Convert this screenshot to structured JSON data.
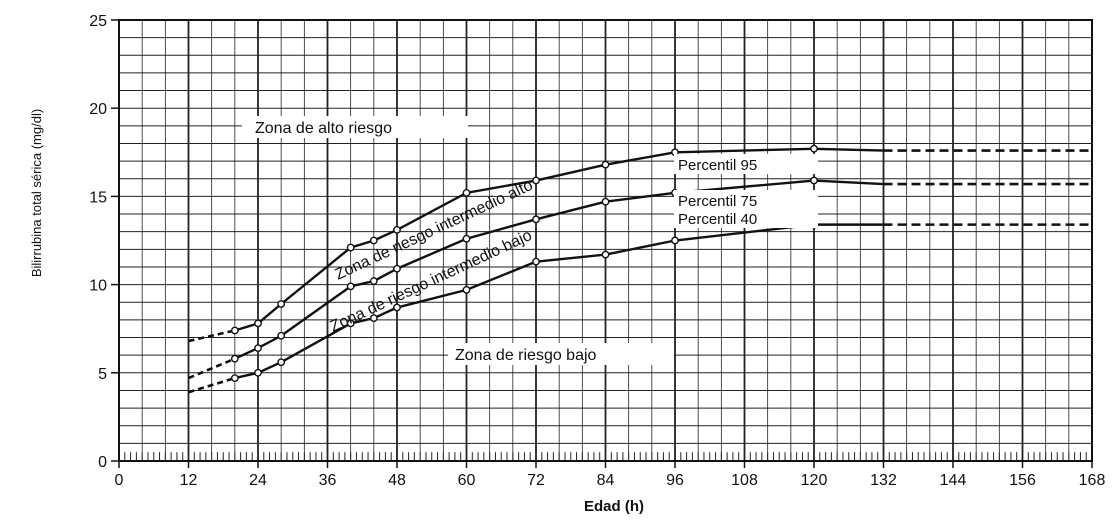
{
  "chart_data": {
    "type": "line",
    "xlabel": "Edad (h)",
    "ylabel": "Bilirrubina total sérica (mg/dl)",
    "xlim": [
      0,
      168
    ],
    "ylim": [
      0,
      25
    ],
    "x_ticks": [
      "0",
      "12",
      "24",
      "36",
      "48",
      "60",
      "72",
      "84",
      "96",
      "108",
      "120",
      "132",
      "144",
      "156",
      "168"
    ],
    "y_ticks": [
      "0",
      "5",
      "10",
      "15",
      "20",
      "25"
    ],
    "grid": true,
    "series": [
      {
        "name": "Percentil 95",
        "points": [
          [
            20,
            7.4
          ],
          [
            24,
            7.8
          ],
          [
            28,
            8.9
          ],
          [
            40,
            12.1
          ],
          [
            44,
            12.5
          ],
          [
            48,
            13.1
          ],
          [
            60,
            15.2
          ],
          [
            72,
            15.9
          ],
          [
            84,
            16.8
          ],
          [
            96,
            17.5
          ],
          [
            120,
            17.7
          ],
          [
            132,
            17.6
          ]
        ],
        "dashed_start": [
          [
            12,
            6.8
          ],
          [
            20,
            7.4
          ]
        ],
        "dashed_end": [
          [
            132,
            17.6
          ],
          [
            168,
            17.6
          ]
        ]
      },
      {
        "name": "Percentil 75",
        "points": [
          [
            20,
            5.8
          ],
          [
            24,
            6.4
          ],
          [
            28,
            7.1
          ],
          [
            40,
            9.9
          ],
          [
            44,
            10.2
          ],
          [
            48,
            10.9
          ],
          [
            60,
            12.6
          ],
          [
            72,
            13.7
          ],
          [
            84,
            14.7
          ],
          [
            96,
            15.2
          ],
          [
            120,
            15.9
          ],
          [
            132,
            15.7
          ]
        ],
        "dashed_start": [
          [
            12,
            4.7
          ],
          [
            20,
            5.8
          ]
        ],
        "dashed_end": [
          [
            132,
            15.7
          ],
          [
            168,
            15.7
          ]
        ]
      },
      {
        "name": "Percentil 40",
        "points": [
          [
            20,
            4.7
          ],
          [
            24,
            5.0
          ],
          [
            28,
            5.6
          ],
          [
            40,
            7.8
          ],
          [
            44,
            8.1
          ],
          [
            48,
            8.7
          ],
          [
            60,
            9.7
          ],
          [
            72,
            11.3
          ],
          [
            84,
            11.7
          ],
          [
            96,
            12.5
          ],
          [
            120,
            13.4
          ],
          [
            132,
            13.4
          ]
        ],
        "dashed_start": [
          [
            12,
            3.9
          ],
          [
            20,
            4.7
          ]
        ],
        "dashed_end": [
          [
            132,
            13.4
          ],
          [
            168,
            13.4
          ]
        ]
      }
    ],
    "annotations": {
      "zona_alto": "Zona de alto riesgo",
      "zona_intermedio_alto": "Zona de riesgo intermedio alto",
      "zona_intermedio_bajo": "Zona de riesgo intermedio bajo",
      "zona_bajo": "Zona de riesgo bajo"
    }
  }
}
